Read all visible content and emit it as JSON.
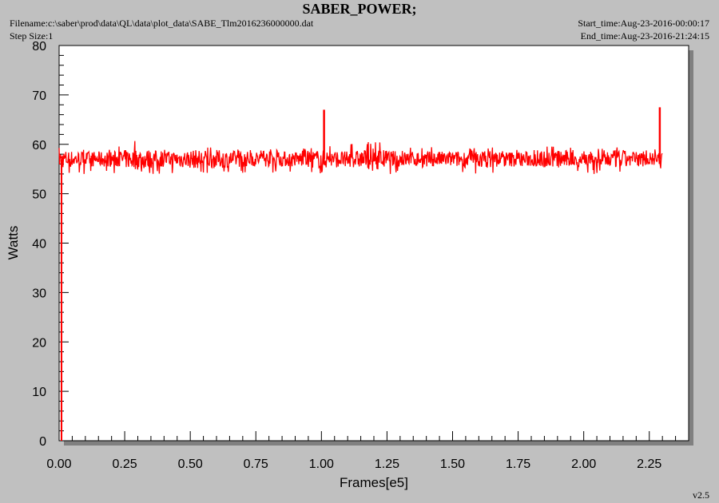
{
  "header": {
    "title": "SABER_POWER;",
    "filename": "Filename:c:\\saber\\prod\\data\\QL\\data\\plot_data\\SABE_Tlm2016236000000.dat",
    "step_size": "Step Size:1",
    "start_time": "Start_time:Aug-23-2016-00:00:17",
    "end_time": "End_time:Aug-23-2016-21:24:15"
  },
  "footer": {
    "version": "v2.5"
  },
  "chart_data": {
    "type": "line",
    "xlabel": "Frames[e5]",
    "ylabel": "Watts",
    "xlim": [
      0,
      2.4
    ],
    "ylim": [
      0,
      80
    ],
    "x_ticks": [
      0,
      0.25,
      0.5,
      0.75,
      1.0,
      1.25,
      1.5,
      1.75,
      2.0,
      2.25
    ],
    "x_tick_labels": [
      "0.00",
      "0.25",
      "0.50",
      "0.75",
      "1.00",
      "1.25",
      "1.50",
      "1.75",
      "2.00",
      "2.25"
    ],
    "y_ticks": [
      0,
      10,
      20,
      30,
      40,
      50,
      60,
      70,
      80
    ],
    "y_tick_labels": [
      "0",
      "10",
      "20",
      "30",
      "40",
      "50",
      "60",
      "70",
      "80"
    ],
    "grid": false,
    "legend": "none",
    "series": [
      {
        "color": "#ff0000",
        "x": [
          0.0,
          0.1,
          0.2,
          0.3,
          0.4,
          0.5,
          0.6,
          0.7,
          0.8,
          0.9,
          1.0,
          1.1,
          1.2,
          1.3,
          1.4,
          1.5,
          1.6,
          1.7,
          1.8,
          1.9,
          2.0,
          2.1,
          2.2,
          2.3
        ],
        "y_min": [
          54,
          54,
          54,
          54,
          54,
          54,
          54,
          54,
          54,
          54,
          54,
          55,
          54,
          54,
          55,
          54,
          54,
          54,
          54,
          54,
          54,
          54,
          54,
          55
        ],
        "y_max": [
          60,
          59,
          59,
          61,
          59,
          60,
          60,
          59,
          59,
          59,
          60,
          60,
          61,
          59,
          60,
          59,
          60,
          59,
          59,
          60,
          59,
          60,
          59,
          59
        ],
        "y_mean": [
          57,
          57,
          57,
          57,
          57,
          57,
          57,
          57,
          57,
          57,
          57,
          57,
          57,
          57,
          57,
          57,
          57,
          57,
          57,
          57,
          57,
          57,
          57,
          57
        ],
        "spikes": [
          {
            "x": 1.01,
            "y": 67
          },
          {
            "x": 2.29,
            "y": 67.5
          }
        ]
      }
    ]
  }
}
